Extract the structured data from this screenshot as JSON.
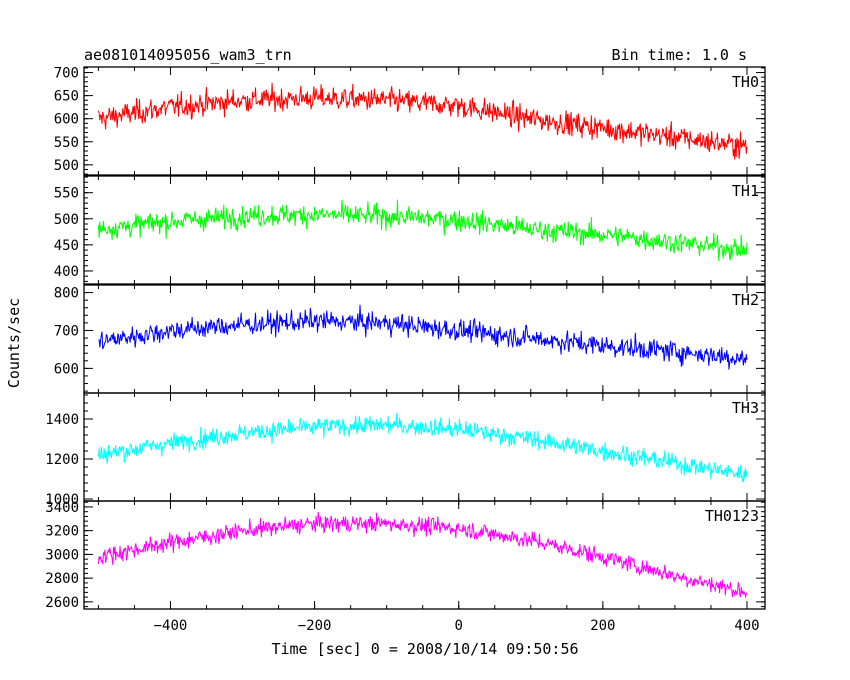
{
  "header": {
    "title": "ae081014095056_wam3_trn",
    "bin_time": "Bin time: 1.0 s"
  },
  "chart_data": {
    "type": "line",
    "xlabel": "Time [sec] 0 = 2008/10/14 09:50:56",
    "ylabel": "Counts/sec",
    "xlim": [
      -520,
      425
    ],
    "x_ticks": [
      -400,
      -200,
      0,
      200,
      400
    ],
    "x_tick_labels": [
      "−400",
      "−200",
      "0",
      "200",
      "400"
    ],
    "x_range_data": [
      -500,
      400
    ],
    "panels": [
      {
        "name": "TH0",
        "color": "#ff0000",
        "ylim": [
          478,
          712
        ],
        "y_ticks": [
          500,
          550,
          600,
          650,
          700
        ],
        "y_tick_labels": [
          "500",
          "550",
          "600",
          "650",
          "700"
        ],
        "trend": [
          [
            -500,
            600
          ],
          [
            -400,
            625
          ],
          [
            -300,
            640
          ],
          [
            -200,
            645
          ],
          [
            -100,
            640
          ],
          [
            0,
            628
          ],
          [
            100,
            600
          ],
          [
            200,
            580
          ],
          [
            300,
            560
          ],
          [
            400,
            540
          ]
        ],
        "noise": 50
      },
      {
        "name": "TH1",
        "color": "#00ff00",
        "ylim": [
          375,
          582
        ],
        "y_ticks": [
          400,
          450,
          500,
          550
        ],
        "y_tick_labels": [
          "400",
          "450",
          "500",
          "550"
        ],
        "trend": [
          [
            -500,
            480
          ],
          [
            -400,
            495
          ],
          [
            -300,
            505
          ],
          [
            -200,
            508
          ],
          [
            -100,
            505
          ],
          [
            0,
            498
          ],
          [
            100,
            480
          ],
          [
            200,
            470
          ],
          [
            300,
            455
          ],
          [
            400,
            440
          ]
        ],
        "noise": 40
      },
      {
        "name": "TH2",
        "color": "#0000ff",
        "ylim": [
          535,
          820
        ],
        "y_ticks": [
          600,
          700,
          800
        ],
        "y_tick_labels": [
          "600",
          "700",
          "800"
        ],
        "trend": [
          [
            -500,
            670
          ],
          [
            -400,
            700
          ],
          [
            -300,
            715
          ],
          [
            -200,
            725
          ],
          [
            -100,
            720
          ],
          [
            0,
            700
          ],
          [
            100,
            680
          ],
          [
            200,
            660
          ],
          [
            300,
            645
          ],
          [
            400,
            625
          ]
        ],
        "noise": 55
      },
      {
        "name": "TH3",
        "color": "#00ffff",
        "ylim": [
          990,
          1530
        ],
        "y_ticks": [
          1000,
          1200,
          1400
        ],
        "y_tick_labels": [
          "1000",
          "1200",
          "1400"
        ],
        "trend": [
          [
            -500,
            1220
          ],
          [
            -400,
            1280
          ],
          [
            -300,
            1330
          ],
          [
            -200,
            1360
          ],
          [
            -100,
            1370
          ],
          [
            0,
            1350
          ],
          [
            100,
            1300
          ],
          [
            200,
            1240
          ],
          [
            300,
            1180
          ],
          [
            400,
            1120
          ]
        ],
        "noise": 90
      },
      {
        "name": "TH0123",
        "color": "#ff00ff",
        "ylim": [
          2540,
          3450
        ],
        "y_ticks": [
          2600,
          2800,
          3000,
          3200,
          3400
        ],
        "y_tick_labels": [
          "2600",
          "2800",
          "3000",
          "3200",
          "3400"
        ],
        "trend": [
          [
            -500,
            2980
          ],
          [
            -400,
            3100
          ],
          [
            -300,
            3200
          ],
          [
            -200,
            3260
          ],
          [
            -100,
            3260
          ],
          [
            0,
            3220
          ],
          [
            100,
            3120
          ],
          [
            200,
            2980
          ],
          [
            300,
            2820
          ],
          [
            400,
            2680
          ]
        ],
        "noise": 140
      }
    ]
  }
}
